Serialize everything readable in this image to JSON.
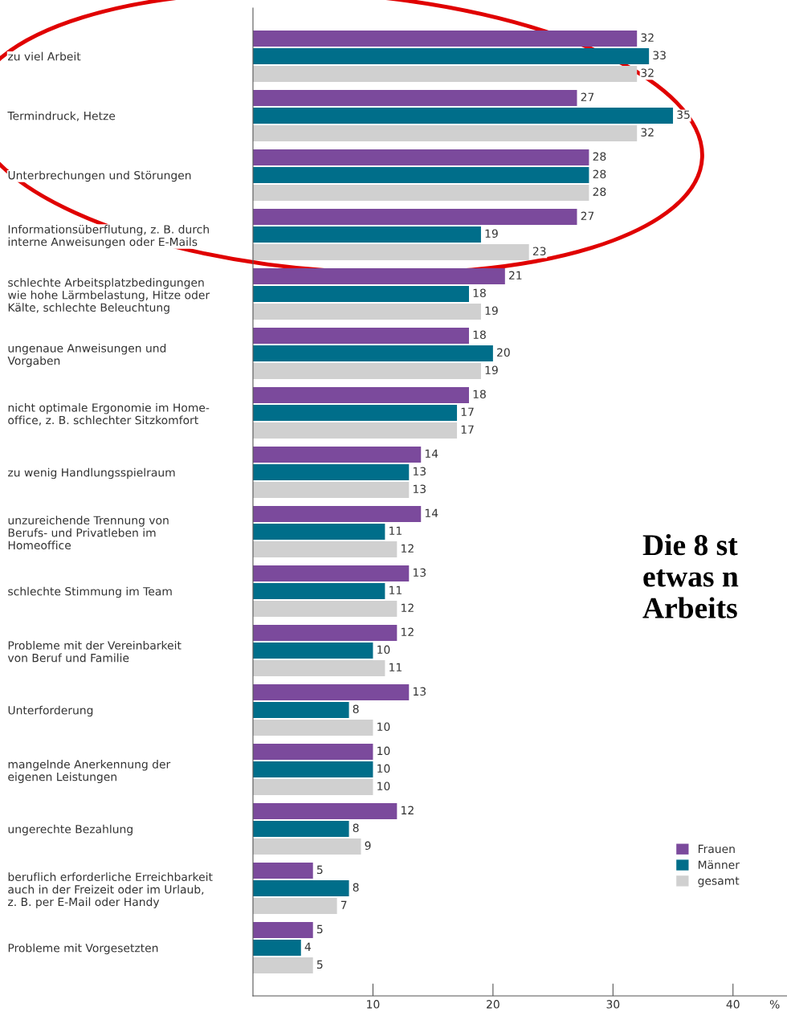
{
  "chart_data": {
    "type": "bar",
    "orientation": "horizontal",
    "categories": [
      "zu viel Arbeit",
      "Termindruck, Hetze",
      "Unterbrechungen und Störungen",
      "Informationsüberflutung, z. B. durch\ninterne Anweisungen oder E-Mails",
      "schlechte Arbeitsplatzbedingungen\nwie hohe Lärmbelastung, Hitze oder\nKälte, schlechte Beleuchtung",
      "ungenaue Anweisungen und\nVorgaben",
      "nicht optimale Ergonomie im Home-\noffice, z. B. schlechter Sitzkomfort",
      "zu wenig Handlungsspielraum",
      "unzureichende Trennung von\nBerufs- und Privatleben im\nHomeoffice",
      "schlechte Stimmung im Team",
      "Probleme mit der Vereinbarkeit\nvon Beruf und Familie",
      "Unterforderung",
      "mangelnde Anerkennung der\neigenen Leistungen",
      "ungerechte Bezahlung",
      "beruflich erforderliche Erreichbarkeit\nauch in der Freizeit oder im Urlaub,\nz. B. per E-Mail oder Handy",
      "Probleme mit Vorgesetzten"
    ],
    "series": [
      {
        "name": "Frauen",
        "color": "#7b4a9c",
        "values": [
          32,
          27,
          28,
          27,
          21,
          18,
          18,
          14,
          14,
          13,
          12,
          13,
          10,
          12,
          5,
          5
        ]
      },
      {
        "name": "Männer",
        "color": "#006e8a",
        "values": [
          33,
          35,
          28,
          19,
          18,
          20,
          17,
          13,
          11,
          11,
          10,
          8,
          10,
          8,
          8,
          4
        ]
      },
      {
        "name": "gesamt",
        "color": "#d0d0d0",
        "values": [
          32,
          32,
          28,
          23,
          19,
          19,
          17,
          13,
          12,
          12,
          11,
          10,
          10,
          9,
          7,
          5
        ]
      }
    ],
    "xlim": [
      0,
      44.5
    ],
    "xticks": [
      10,
      20,
      30,
      40
    ],
    "xlabel": "%",
    "data_labels": true,
    "grid": false,
    "legend": "bottom right",
    "annotations": [
      "Die 8 st\netwas n\nArbeits"
    ]
  }
}
